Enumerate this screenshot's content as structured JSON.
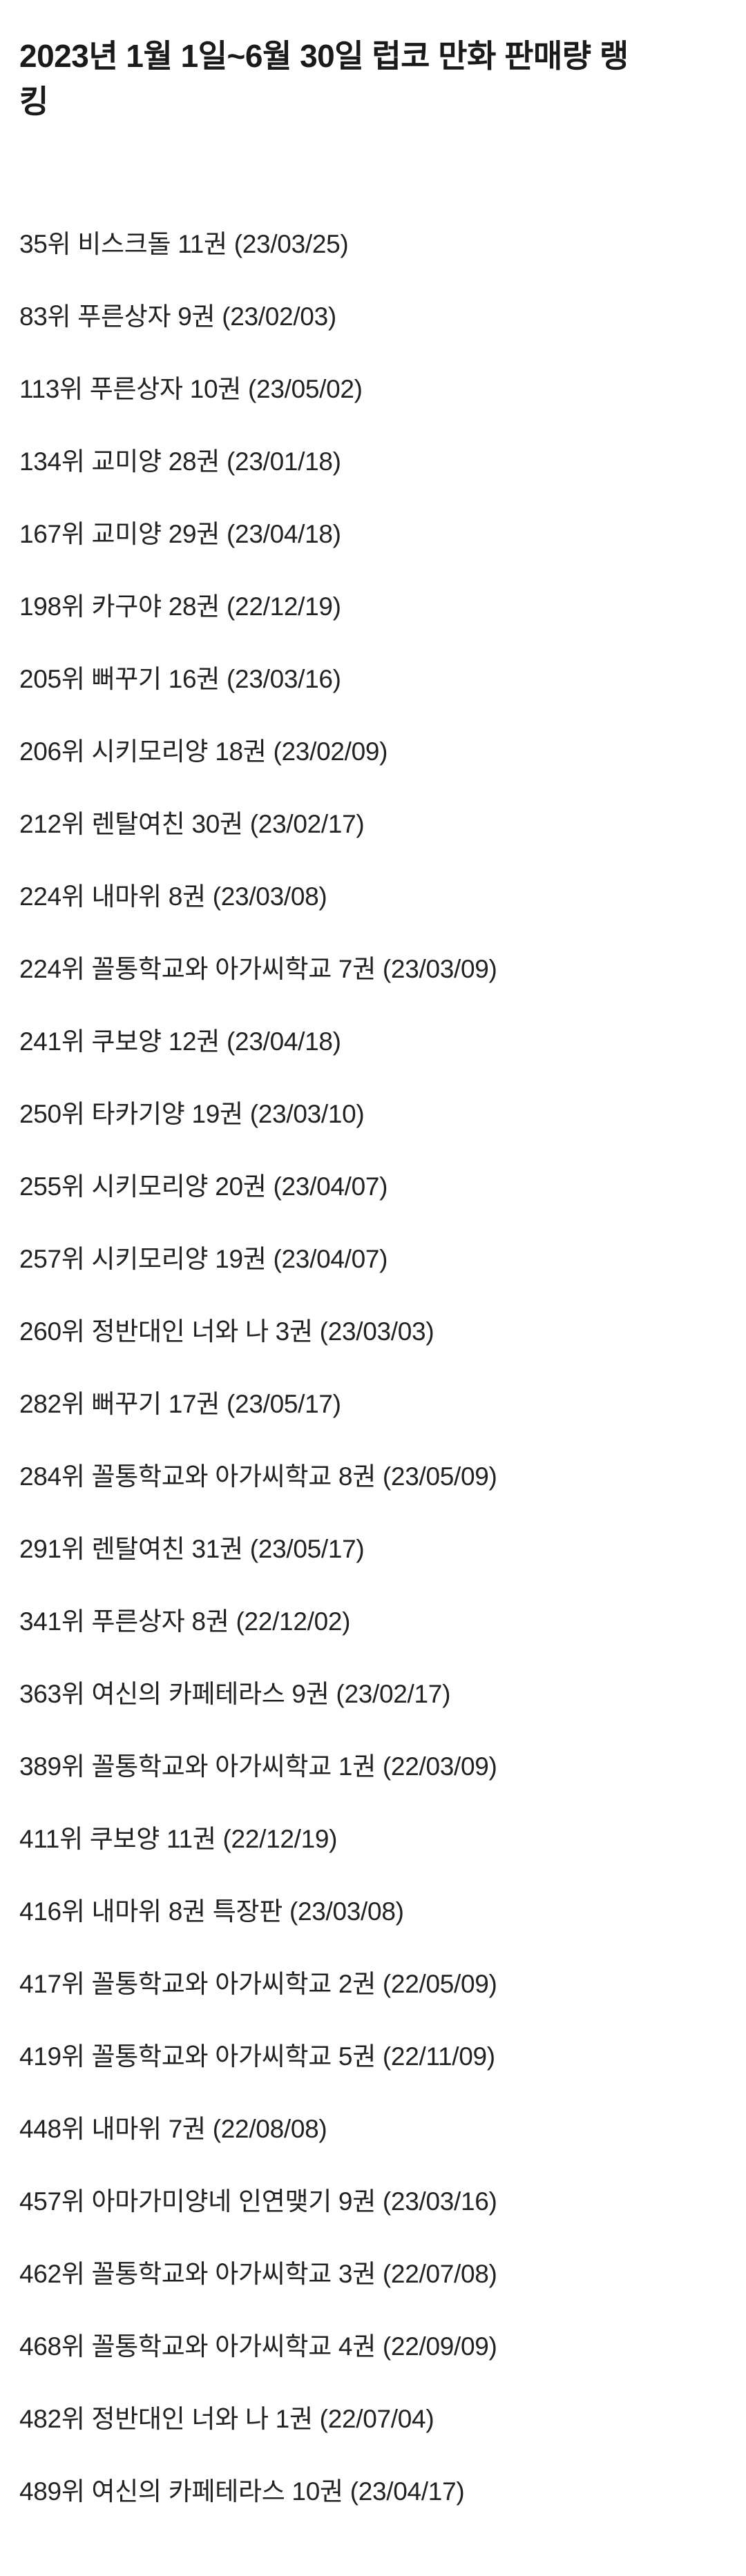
{
  "page": {
    "title": "2023년 1월 1일~6월 30일 럽코 만화 판매량 랭킹",
    "title_lines": [
      "2023년 1월 1일~6월 30일 럽코 만화 판매량 랭",
      "킹"
    ],
    "entries": [
      "35위 비스크돌 11권 (23/03/25)",
      "83위 푸른상자 9권 (23/02/03)",
      "113위 푸른상자 10권 (23/05/02)",
      "134위 교미양 28권 (23/01/18)",
      "167위 교미양 29권 (23/04/18)",
      "198위 카구야 28권 (22/12/19)",
      "205위 뻐꾸기 16권 (23/03/16)",
      "206위 시키모리양 18권 (23/02/09)",
      "212위 렌탈여친 30권 (23/02/17)",
      "224위 내마위 8권 (23/03/08)",
      "224위 꼴통학교와 아가씨학교 7권 (23/03/09)",
      "241위 쿠보양 12권 (23/04/18)",
      "250위 타카기양 19권 (23/03/10)",
      "255위 시키모리양 20권 (23/04/07)",
      "257위 시키모리양 19권 (23/04/07)",
      "260위 정반대인 너와 나 3권 (23/03/03)",
      "282위 뻐꾸기 17권 (23/05/17)",
      "284위 꼴통학교와 아가씨학교 8권 (23/05/09)",
      "291위 렌탈여친 31권 (23/05/17)",
      "341위 푸른상자 8권 (22/12/02)",
      "363위 여신의 카페테라스 9권 (23/02/17)",
      "389위 꼴통학교와 아가씨학교 1권 (22/03/09)",
      "411위 쿠보양 11권 (22/12/19)",
      "416위 내마위 8권 특장판 (23/03/08)",
      "417위 꼴통학교와 아가씨학교 2권 (22/05/09)",
      "419위 꼴통학교와 아가씨학교 5권 (22/11/09)",
      "448위 내마위 7권 (22/08/08)",
      "457위 아마가미양네 인연맺기 9권 (23/03/16)",
      "462위 꼴통학교와 아가씨학교 3권 (22/07/08)",
      "468위 꼴통학교와 아가씨학교 4권 (22/09/09)",
      "482위 정반대인 너와 나 1권 (22/07/04)",
      "489위 여신의 카페테라스 10권 (23/04/17)"
    ],
    "colors": {
      "background": "#ffffff",
      "title_text": "#1a1a1a",
      "body_text": "#222222"
    }
  }
}
